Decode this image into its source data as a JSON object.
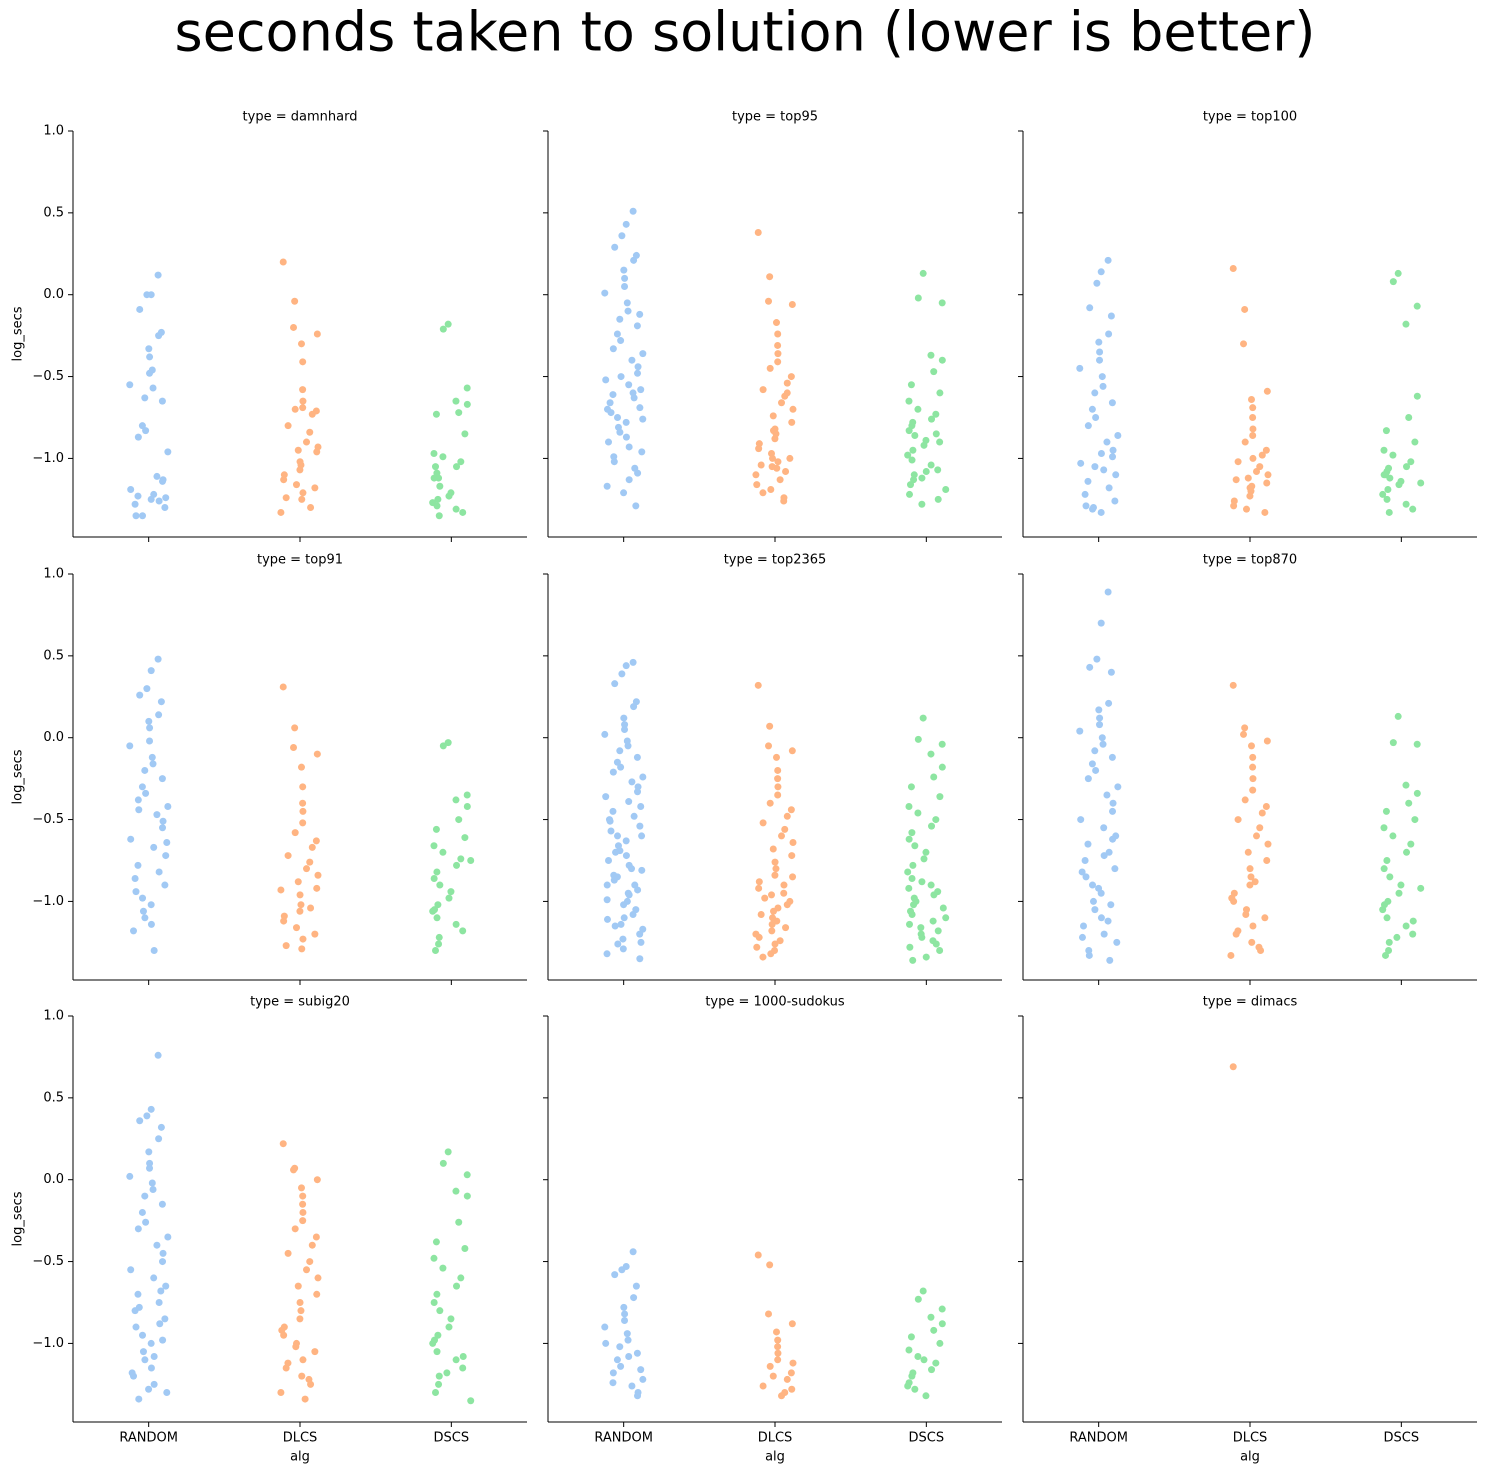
{
  "title": "seconds taken to solution (lower is better)",
  "chart_data": [
    {
      "type": "strip",
      "title": "type = damnhard",
      "ylabel": "log_secs",
      "colors": [
        "#a1c9f4",
        "#ffb482",
        "#8de5a1"
      ],
      "ylim": [
        -1.48,
        1.0
      ],
      "yticks": [
        {
          "value": -1,
          "label": "−1.0"
        },
        {
          "value": -0.5,
          "label": "−0.5"
        },
        {
          "value": 0,
          "label": "0.0"
        },
        0.5,
        {
          "value": 1,
          "label": "1.0"
        }
      ],
      "values": [
        [
          0.12,
          0.0,
          0.0,
          -0.09,
          -0.23,
          -0.25,
          -0.33,
          -0.38,
          -0.48,
          -0.55,
          -0.46,
          -0.57,
          -0.63,
          -0.65,
          -0.8,
          -0.83,
          -0.87,
          -0.96,
          -1.11,
          -1.13,
          -1.14,
          -1.19,
          -1.22,
          -1.24,
          -1.23,
          -1.26,
          -1.28,
          -1.3,
          -1.35,
          -1.35,
          -1.25
        ],
        [
          0.2,
          -0.04,
          -0.2,
          -0.24,
          -0.3,
          -0.41,
          -0.58,
          -0.65,
          -0.69,
          -0.7,
          -0.71,
          -0.73,
          -0.8,
          -0.84,
          -0.9,
          -0.93,
          -0.95,
          -0.96,
          -1.02,
          -1.04,
          -1.07,
          -1.1,
          -1.13,
          -1.16,
          -1.18,
          -1.21,
          -1.24,
          -1.25,
          -1.3,
          -1.33
        ],
        [
          -0.18,
          -0.21,
          -0.57,
          -0.65,
          -0.67,
          -0.72,
          -0.73,
          -0.85,
          -0.97,
          -0.99,
          -1.02,
          -1.05,
          -1.09,
          -1.12,
          -1.17,
          -1.21,
          -1.23,
          -1.25,
          -1.27,
          -1.29,
          -1.31,
          -1.33,
          -1.35,
          -1.12,
          -1.05
        ]
      ]
    },
    {
      "type": "strip",
      "title": "type = top95",
      "colors": [
        "#a1c9f4",
        "#ffb482",
        "#8de5a1"
      ],
      "ylim": [
        -1.48,
        1.0
      ],
      "yticks": [
        -1,
        -0.5,
        0,
        0.5,
        1
      ],
      "values": [
        [
          0.51,
          0.43,
          0.36,
          0.29,
          0.24,
          0.21,
          0.15,
          0.1,
          0.05,
          0.01,
          -0.05,
          -0.1,
          -0.15,
          -0.19,
          -0.24,
          -0.28,
          -0.33,
          -0.36,
          -0.4,
          -0.44,
          -0.48,
          -0.52,
          -0.55,
          -0.58,
          -0.61,
          -0.63,
          -0.66,
          -0.69,
          -0.72,
          -0.75,
          -0.78,
          -0.81,
          -0.84,
          -0.87,
          -0.9,
          -0.93,
          -0.96,
          -0.99,
          -1.02,
          -1.06,
          -1.09,
          -1.13,
          -1.17,
          -1.21,
          -1.29,
          -0.6,
          -0.7,
          -0.5,
          -0.76,
          -0.12
        ],
        [
          0.38,
          0.11,
          -0.04,
          -0.06,
          -0.17,
          -0.24,
          -0.31,
          -0.36,
          -0.41,
          -0.45,
          -0.5,
          -0.54,
          -0.58,
          -0.62,
          -0.66,
          -0.7,
          -0.74,
          -0.78,
          -0.82,
          -0.85,
          -0.88,
          -0.91,
          -0.94,
          -0.97,
          -1.0,
          -1.02,
          -1.04,
          -1.06,
          -1.08,
          -1.1,
          -1.13,
          -1.16,
          -1.19,
          -1.21,
          -1.24,
          -1.26,
          -0.6,
          -0.83,
          -1.0,
          -1.05
        ],
        [
          0.13,
          -0.02,
          -0.05,
          -0.37,
          -0.4,
          -0.47,
          -0.55,
          -0.6,
          -0.65,
          -0.7,
          -0.73,
          -0.76,
          -0.8,
          -0.83,
          -0.86,
          -0.89,
          -0.92,
          -0.95,
          -0.98,
          -1.01,
          -1.04,
          -1.07,
          -1.1,
          -1.13,
          -1.16,
          -1.19,
          -1.22,
          -1.25,
          -1.28,
          -0.85,
          -0.9,
          -1.08,
          -0.78,
          -1.12
        ]
      ]
    },
    {
      "type": "strip",
      "title": "type = top100",
      "colors": [
        "#a1c9f4",
        "#ffb482",
        "#8de5a1"
      ],
      "ylim": [
        -1.48,
        1.0
      ],
      "yticks": [
        -1,
        -0.5,
        0,
        0.5,
        1
      ],
      "values": [
        [
          0.21,
          0.14,
          0.07,
          -0.08,
          -0.13,
          -0.24,
          -0.29,
          -0.35,
          -0.4,
          -0.45,
          -0.5,
          -0.56,
          -0.6,
          -0.66,
          -0.7,
          -0.75,
          -0.8,
          -0.86,
          -0.9,
          -0.95,
          -0.99,
          -1.03,
          -1.07,
          -1.1,
          -1.14,
          -1.18,
          -1.22,
          -1.26,
          -1.29,
          -1.31,
          -1.33,
          -1.3,
          -1.05,
          -0.97
        ],
        [
          0.16,
          -0.09,
          -0.3,
          -0.59,
          -0.64,
          -0.69,
          -0.75,
          -0.82,
          -0.86,
          -0.9,
          -0.95,
          -0.98,
          -1.02,
          -1.05,
          -1.08,
          -1.1,
          -1.12,
          -1.15,
          -1.18,
          -1.2,
          -1.23,
          -1.26,
          -1.29,
          -1.31,
          -1.33,
          -1.0,
          -1.13,
          -1.17
        ],
        [
          0.13,
          0.08,
          -0.07,
          -0.18,
          -0.62,
          -0.75,
          -0.83,
          -0.9,
          -0.95,
          -0.98,
          -1.02,
          -1.05,
          -1.08,
          -1.1,
          -1.12,
          -1.14,
          -1.16,
          -1.19,
          -1.22,
          -1.25,
          -1.28,
          -1.31,
          -1.33,
          -1.06,
          -1.1,
          -1.15
        ]
      ]
    },
    {
      "type": "strip",
      "title": "type = top91",
      "ylabel": "log_secs",
      "colors": [
        "#a1c9f4",
        "#ffb482",
        "#8de5a1"
      ],
      "ylim": [
        -1.48,
        1.0
      ],
      "yticks": [
        {
          "value": -1,
          "label": "−1.0"
        },
        {
          "value": -0.5,
          "label": "−0.5"
        },
        {
          "value": 0,
          "label": "0.0"
        },
        0.5,
        {
          "value": 1,
          "label": "1.0"
        }
      ],
      "values": [
        [
          0.48,
          0.41,
          0.3,
          0.26,
          0.22,
          0.14,
          0.1,
          0.06,
          -0.02,
          -0.05,
          -0.12,
          -0.16,
          -0.2,
          -0.25,
          -0.3,
          -0.34,
          -0.38,
          -0.42,
          -0.47,
          -0.51,
          -0.55,
          -0.62,
          -0.67,
          -0.72,
          -0.78,
          -0.82,
          -0.86,
          -0.9,
          -0.94,
          -0.98,
          -1.02,
          -1.06,
          -1.1,
          -1.14,
          -1.18,
          -1.3,
          -0.64,
          -0.44
        ],
        [
          0.31,
          0.06,
          -0.06,
          -0.1,
          -0.18,
          -0.3,
          -0.4,
          -0.45,
          -0.52,
          -0.58,
          -0.63,
          -0.67,
          -0.72,
          -0.76,
          -0.8,
          -0.84,
          -0.88,
          -0.92,
          -0.96,
          -1.02,
          -1.06,
          -1.09,
          -1.12,
          -1.16,
          -1.2,
          -1.23,
          -1.27,
          -1.29,
          -1.04,
          -0.93
        ],
        [
          -0.03,
          -0.05,
          -0.35,
          -0.38,
          -0.42,
          -0.5,
          -0.56,
          -0.61,
          -0.66,
          -0.7,
          -0.74,
          -0.78,
          -0.82,
          -0.86,
          -0.9,
          -0.94,
          -0.98,
          -1.02,
          -1.06,
          -1.1,
          -1.14,
          -1.18,
          -1.22,
          -1.26,
          -1.3,
          -0.75,
          -1.05
        ]
      ]
    },
    {
      "type": "strip",
      "title": "type = top2365",
      "colors": [
        "#a1c9f4",
        "#ffb482",
        "#8de5a1"
      ],
      "ylim": [
        -1.48,
        1.0
      ],
      "yticks": [
        -1,
        -0.5,
        0,
        0.5,
        1
      ],
      "values": [
        [
          0.46,
          0.44,
          0.39,
          0.33,
          0.22,
          0.19,
          0.12,
          0.08,
          0.05,
          0.02,
          -0.02,
          -0.05,
          -0.08,
          -0.12,
          -0.15,
          -0.18,
          -0.21,
          -0.24,
          -0.27,
          -0.3,
          -0.33,
          -0.36,
          -0.39,
          -0.42,
          -0.45,
          -0.48,
          -0.51,
          -0.54,
          -0.57,
          -0.6,
          -0.63,
          -0.66,
          -0.69,
          -0.72,
          -0.75,
          -0.78,
          -0.81,
          -0.84,
          -0.87,
          -0.9,
          -0.93,
          -0.96,
          -0.99,
          -1.02,
          -1.05,
          -1.08,
          -1.11,
          -1.14,
          -1.17,
          -1.2,
          -1.23,
          -1.26,
          -1.29,
          -1.32,
          -1.35,
          -0.7,
          -0.85,
          -0.95,
          -1.0,
          -1.1,
          -1.15,
          -1.25,
          -0.6,
          -0.5,
          -0.8,
          -0.9
        ],
        [
          0.32,
          0.07,
          -0.05,
          -0.08,
          -0.12,
          -0.2,
          -0.25,
          -0.3,
          -0.35,
          -0.4,
          -0.44,
          -0.48,
          -0.52,
          -0.56,
          -0.6,
          -0.64,
          -0.68,
          -0.72,
          -0.76,
          -0.8,
          -0.84,
          -0.88,
          -0.92,
          -0.96,
          -1.0,
          -1.04,
          -1.08,
          -1.12,
          -1.16,
          -1.2,
          -1.24,
          -1.28,
          -1.32,
          -1.34,
          -0.9,
          -0.95,
          -1.02,
          -1.06,
          -1.1,
          -1.14,
          -1.18,
          -1.22,
          -1.26,
          -1.3,
          -0.85,
          -0.98
        ],
        [
          0.12,
          -0.01,
          -0.04,
          -0.1,
          -0.18,
          -0.24,
          -0.3,
          -0.36,
          -0.42,
          -0.46,
          -0.5,
          -0.54,
          -0.58,
          -0.62,
          -0.66,
          -0.7,
          -0.74,
          -0.78,
          -0.82,
          -0.86,
          -0.9,
          -0.94,
          -0.98,
          -1.02,
          -1.06,
          -1.1,
          -1.14,
          -1.18,
          -1.22,
          -1.26,
          -1.3,
          -1.34,
          -1.36,
          -0.88,
          -0.96,
          -1.04,
          -1.08,
          -1.12,
          -1.16,
          -1.2,
          -1.24,
          -1.28,
          -0.92,
          -1.0
        ]
      ]
    },
    {
      "type": "strip",
      "title": "type = top870",
      "colors": [
        "#a1c9f4",
        "#ffb482",
        "#8de5a1"
      ],
      "ylim": [
        -1.48,
        1.0
      ],
      "yticks": [
        -1,
        -0.5,
        0,
        0.5,
        1
      ],
      "values": [
        [
          0.89,
          0.7,
          0.48,
          0.43,
          0.4,
          0.21,
          0.17,
          0.12,
          0.08,
          0.04,
          0.0,
          -0.04,
          -0.08,
          -0.12,
          -0.16,
          -0.2,
          -0.25,
          -0.3,
          -0.35,
          -0.4,
          -0.45,
          -0.5,
          -0.55,
          -0.6,
          -0.65,
          -0.7,
          -0.75,
          -0.8,
          -0.85,
          -0.9,
          -0.95,
          -1.0,
          -1.05,
          -1.1,
          -1.15,
          -1.2,
          -1.25,
          -1.3,
          -1.33,
          -1.36,
          -0.62,
          -0.72,
          -0.82,
          -0.92,
          -1.02,
          -1.12,
          -1.22
        ],
        [
          0.32,
          0.06,
          0.02,
          -0.02,
          -0.05,
          -0.12,
          -0.18,
          -0.25,
          -0.32,
          -0.38,
          -0.42,
          -0.46,
          -0.5,
          -0.55,
          -0.6,
          -0.65,
          -0.7,
          -0.75,
          -0.8,
          -0.85,
          -0.9,
          -0.95,
          -1.0,
          -1.05,
          -1.1,
          -1.15,
          -1.2,
          -1.25,
          -1.3,
          -1.33,
          -0.88,
          -0.98,
          -1.08,
          -1.18,
          -1.28
        ],
        [
          0.13,
          -0.03,
          -0.04,
          -0.29,
          -0.34,
          -0.4,
          -0.45,
          -0.5,
          -0.55,
          -0.6,
          -0.65,
          -0.7,
          -0.75,
          -0.8,
          -0.85,
          -0.9,
          -0.95,
          -1.0,
          -1.05,
          -1.1,
          -1.15,
          -1.2,
          -1.25,
          -1.3,
          -1.33,
          -0.92,
          -1.02,
          -1.12,
          -1.22
        ]
      ]
    },
    {
      "type": "strip",
      "title": "type = subig20",
      "ylabel": "log_secs",
      "xlabel": "alg",
      "categories": [
        "RANDOM",
        "DLCS",
        "DSCS"
      ],
      "colors": [
        "#a1c9f4",
        "#ffb482",
        "#8de5a1"
      ],
      "ylim": [
        -1.48,
        1.0
      ],
      "yticks": [
        {
          "value": -1,
          "label": "−1.0"
        },
        {
          "value": -0.5,
          "label": "−0.5"
        },
        {
          "value": 0,
          "label": "0.0"
        },
        0.5,
        {
          "value": 1,
          "label": "1.0"
        }
      ],
      "values": [
        [
          0.76,
          0.43,
          0.39,
          0.36,
          0.32,
          0.25,
          0.17,
          0.1,
          0.07,
          0.02,
          -0.02,
          -0.06,
          -0.1,
          -0.15,
          -0.2,
          -0.26,
          -0.3,
          -0.35,
          -0.4,
          -0.45,
          -0.5,
          -0.55,
          -0.6,
          -0.65,
          -0.7,
          -0.75,
          -0.8,
          -0.85,
          -0.9,
          -0.95,
          -1.0,
          -1.05,
          -1.1,
          -1.15,
          -1.2,
          -1.25,
          -1.3,
          -1.34,
          -0.78,
          -0.88,
          -0.98,
          -1.08,
          -1.18,
          -1.28,
          -0.68
        ],
        [
          0.22,
          0.07,
          0.06,
          0.0,
          -0.05,
          -0.1,
          -0.15,
          -0.2,
          -0.25,
          -0.3,
          -0.35,
          -0.4,
          -0.45,
          -0.5,
          -0.55,
          -0.6,
          -0.65,
          -0.7,
          -0.75,
          -0.8,
          -0.85,
          -0.9,
          -0.95,
          -1.0,
          -1.05,
          -1.1,
          -1.15,
          -1.2,
          -1.25,
          -1.3,
          -1.34,
          -0.92,
          -1.02,
          -1.12,
          -1.22
        ],
        [
          0.17,
          0.1,
          0.03,
          -0.07,
          -0.1,
          -0.26,
          -0.38,
          -0.42,
          -0.48,
          -0.54,
          -0.6,
          -0.65,
          -0.7,
          -0.75,
          -0.8,
          -0.85,
          -0.9,
          -0.95,
          -1.0,
          -1.05,
          -1.1,
          -1.15,
          -1.2,
          -1.25,
          -1.3,
          -1.35,
          -0.98,
          -1.08,
          -1.18
        ]
      ]
    },
    {
      "type": "strip",
      "title": "type = 1000-sudokus",
      "xlabel": "alg",
      "categories": [
        "RANDOM",
        "DLCS",
        "DSCS"
      ],
      "colors": [
        "#a1c9f4",
        "#ffb482",
        "#8de5a1"
      ],
      "ylim": [
        -1.48,
        1.0
      ],
      "yticks": [
        -1,
        -0.5,
        0,
        0.5,
        1
      ],
      "values": [
        [
          -0.44,
          -0.53,
          -0.55,
          -0.58,
          -0.65,
          -0.72,
          -0.78,
          -0.82,
          -0.86,
          -0.9,
          -0.94,
          -0.98,
          -1.02,
          -1.06,
          -1.1,
          -1.14,
          -1.18,
          -1.22,
          -1.26,
          -1.3,
          -1.32,
          -1.0,
          -1.08,
          -1.16,
          -1.24
        ],
        [
          -0.46,
          -0.52,
          -0.82,
          -0.88,
          -0.93,
          -0.98,
          -1.02,
          -1.06,
          -1.1,
          -1.14,
          -1.18,
          -1.22,
          -1.26,
          -1.3,
          -1.32,
          -1.12,
          -1.2,
          -1.28
        ],
        [
          -0.68,
          -0.73,
          -0.79,
          -0.84,
          -0.88,
          -0.92,
          -0.96,
          -1.0,
          -1.04,
          -1.08,
          -1.12,
          -1.16,
          -1.2,
          -1.24,
          -1.28,
          -1.32,
          -1.1,
          -1.18,
          -1.26
        ]
      ]
    },
    {
      "type": "strip",
      "title": "type = dimacs",
      "xlabel": "alg",
      "categories": [
        "RANDOM",
        "DLCS",
        "DSCS"
      ],
      "colors": [
        "#a1c9f4",
        "#ffb482",
        "#8de5a1"
      ],
      "ylim": [
        -1.48,
        1.0
      ],
      "yticks": [
        -1,
        -0.5,
        0,
        0.5,
        1
      ],
      "values": [
        [],
        [
          0.69
        ],
        []
      ]
    }
  ]
}
